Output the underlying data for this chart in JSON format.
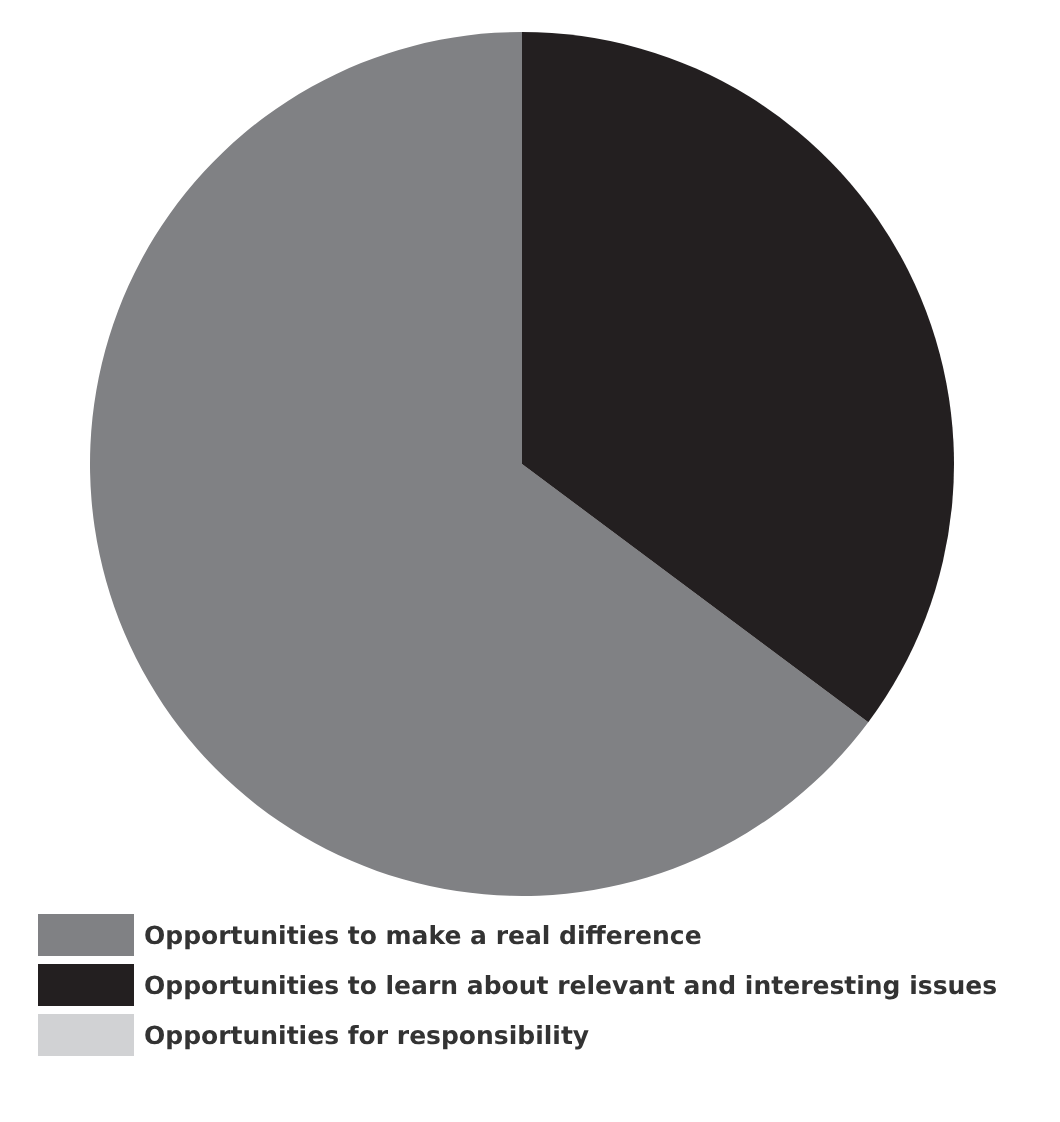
{
  "chart_data": {
    "type": "pie",
    "categories": [
      "Opportunities to make a real difference",
      "Opportunities to learn about relevant and interesting issues",
      "Opportunities for responsibility"
    ],
    "values": [
      64.8,
      35.2,
      0
    ],
    "colors": [
      "#808184",
      "#231f20",
      "#d1d2d4"
    ],
    "legend": "bottom left"
  }
}
